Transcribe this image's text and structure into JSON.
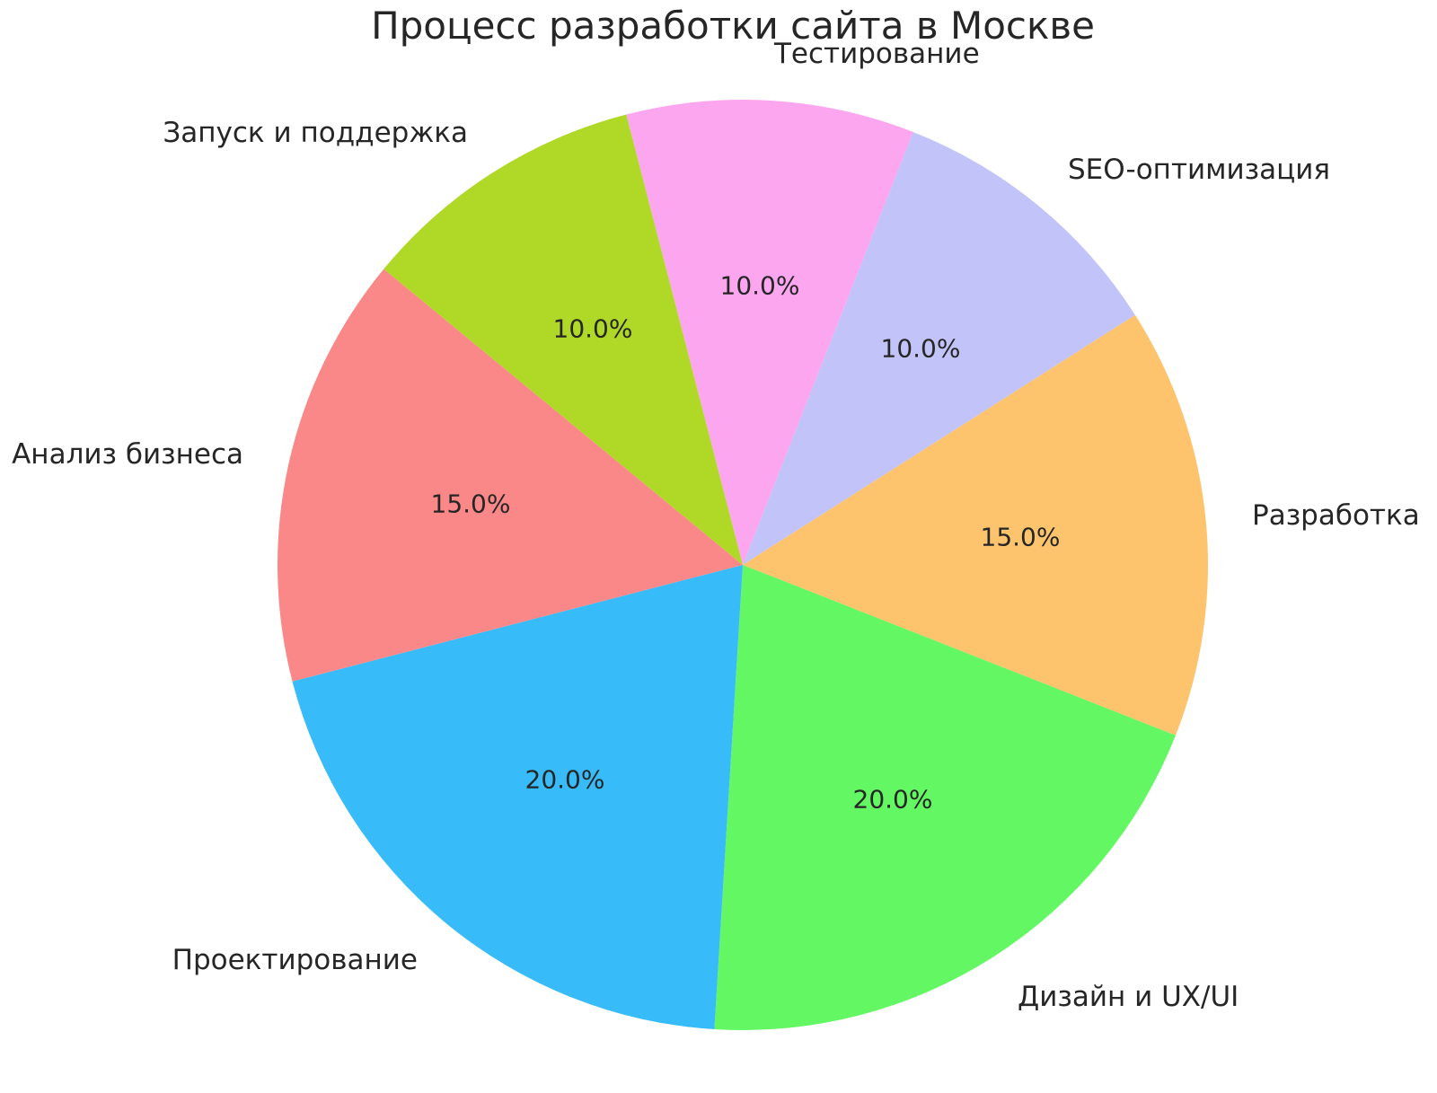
{
  "title": "Процесс разработки сайта в Москве",
  "text_color": "#262626",
  "background_color": "#ffffff",
  "chart_data": {
    "type": "pie",
    "title": "Процесс разработки сайта в Москве",
    "legend_position": "none",
    "direction": "clockwise",
    "start_angle_from_top_deg": -14.5,
    "label_distance": 1.1,
    "pct_distance": 0.6,
    "slices": [
      {
        "label": "Тестирование",
        "value": 10.0,
        "pct_label": "10.0%",
        "color": "#FCA6F0"
      },
      {
        "label": "SEO-оптимизация",
        "value": 10.0,
        "pct_label": "10.0%",
        "color": "#C2C3F8"
      },
      {
        "label": "Разработка",
        "value": 15.0,
        "pct_label": "15.0%",
        "color": "#FDC46D"
      },
      {
        "label": "Дизайн и UX/UI",
        "value": 20.0,
        "pct_label": "20.0%",
        "color": "#63F763"
      },
      {
        "label": "Проектирование",
        "value": 20.0,
        "pct_label": "20.0%",
        "color": "#38BBF9"
      },
      {
        "label": "Анализ бизнеса",
        "value": 15.0,
        "pct_label": "15.0%",
        "color": "#FB8888"
      },
      {
        "label": "Запуск и поддержка",
        "value": 10.0,
        "pct_label": "10.0%",
        "color": "#AFD926"
      }
    ]
  }
}
